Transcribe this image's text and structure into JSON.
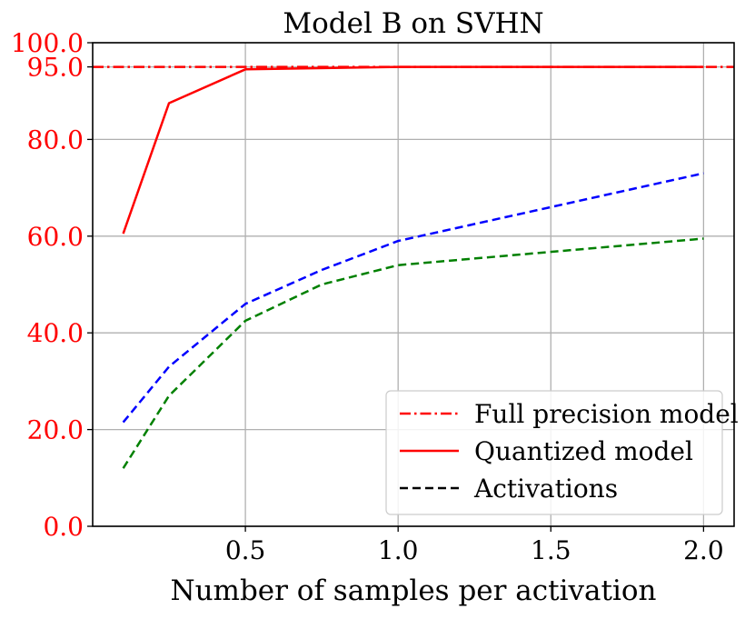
{
  "chart_data": {
    "type": "line",
    "title": "Model B on SVHN",
    "xlabel": "Number of samples per activation",
    "ylabel": "",
    "xlim": [
      0.0,
      2.1
    ],
    "ylim": [
      0.0,
      100.0
    ],
    "grid": true,
    "x_ticks": [
      0.5,
      1.0,
      1.5,
      2.0
    ],
    "x_tick_labels": [
      "0.5",
      "1.0",
      "1.5",
      "2.0"
    ],
    "y_ticks": [
      0.0,
      20.0,
      40.0,
      60.0,
      80.0,
      95.0,
      100.0
    ],
    "y_tick_labels": [
      "0.0",
      "20.0",
      "40.0",
      "60.0",
      "80.0",
      "95.0",
      "100.0"
    ],
    "y_tick_color": "#ff0000",
    "legend_position": "lower-right",
    "legend": [
      {
        "label": "Full precision model",
        "style": "dashdot",
        "color": "#ff0000"
      },
      {
        "label": "Quantized model",
        "style": "solid",
        "color": "#ff0000"
      },
      {
        "label": "Activations",
        "style": "dashed",
        "color": "#000000"
      }
    ],
    "reference_lines": [
      {
        "name": "Full precision model",
        "y": 95.0,
        "style": "dashdot",
        "color": "#ff0000"
      }
    ],
    "series": [
      {
        "name": "Quantized model",
        "style": "solid",
        "color": "#ff0000",
        "x": [
          0.1,
          0.25,
          0.5,
          1.0,
          2.0
        ],
        "values": [
          60.5,
          87.5,
          94.5,
          95.0,
          95.0
        ]
      },
      {
        "name": "Activations (blue)",
        "style": "dashed",
        "color": "#0000ff",
        "x": [
          0.1,
          0.25,
          0.5,
          0.75,
          1.0,
          2.0
        ],
        "values": [
          21.5,
          33.0,
          46.0,
          53.0,
          59.0,
          73.0
        ]
      },
      {
        "name": "Activations (green)",
        "style": "dashed",
        "color": "#008000",
        "x": [
          0.1,
          0.25,
          0.5,
          0.75,
          1.0,
          2.0
        ],
        "values": [
          12.0,
          27.0,
          42.5,
          50.0,
          54.0,
          59.5
        ]
      }
    ]
  }
}
